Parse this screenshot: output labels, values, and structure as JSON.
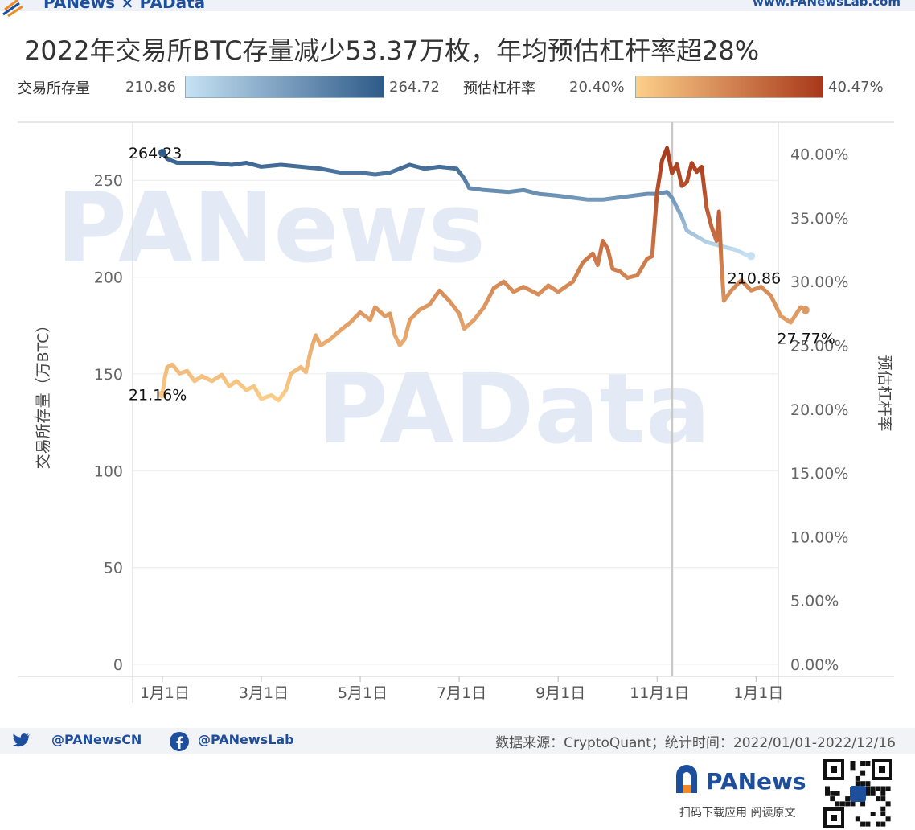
{
  "header": {
    "brand": "PANews × PAData",
    "site": "www.PANewsLab.com"
  },
  "title": "2022年交易所BTC存量减少53.37万枚，年均预估杠杆率超28%",
  "legend": {
    "reserve": {
      "label": "交易所存量",
      "min": "210.86",
      "max": "264.72",
      "color_light": "#c6e2f4",
      "color_dark": "#2e5a89"
    },
    "leverage": {
      "label": "预估杠杆率",
      "min": "20.40%",
      "max": "40.47%",
      "color_light": "#fdd08a",
      "color_dark": "#a8381a"
    }
  },
  "watermarks": [
    "PANews",
    "PAData"
  ],
  "chart_data": {
    "type": "line",
    "x_unit": "month_index_2022",
    "x_ticks": [
      {
        "x": 0,
        "label": "1月1日"
      },
      {
        "x": 2,
        "label": "3月1日"
      },
      {
        "x": 4,
        "label": "5月1日"
      },
      {
        "x": 6,
        "label": "7月1日"
      },
      {
        "x": 8,
        "label": "9月1日"
      },
      {
        "x": 10,
        "label": "11月1日"
      },
      {
        "x": 12,
        "label": "1月1日"
      }
    ],
    "x_range": [
      -0.6,
      12.45
    ],
    "left_axis": {
      "label": "交易所存量（万BTC）",
      "range": [
        0,
        280
      ],
      "ticks": [
        0,
        50,
        100,
        150,
        200,
        250
      ],
      "tick_labels": [
        "0",
        "50",
        "100",
        "150",
        "200",
        "250"
      ]
    },
    "right_axis": {
      "label": "预估杠杆率",
      "range": [
        0,
        42.5
      ],
      "ticks": [
        0,
        5,
        10,
        15,
        20,
        25,
        30,
        35,
        40
      ],
      "tick_labels": [
        "0.00%",
        "5.00%",
        "10.00%",
        "15.00%",
        "20.00%",
        "25.00%",
        "30.00%",
        "35.00%",
        "40.00%"
      ]
    },
    "reference_line_x": 10.3,
    "series": [
      {
        "name": "交易所存量",
        "axis": "left",
        "min": 210.86,
        "max": 264.72,
        "points": [
          [
            0,
            264.23
          ],
          [
            0.1,
            261
          ],
          [
            0.3,
            259
          ],
          [
            0.6,
            259
          ],
          [
            1.0,
            259
          ],
          [
            1.4,
            258
          ],
          [
            1.7,
            259
          ],
          [
            2.0,
            257
          ],
          [
            2.4,
            258
          ],
          [
            2.8,
            257
          ],
          [
            3.2,
            256
          ],
          [
            3.6,
            254
          ],
          [
            4.0,
            254
          ],
          [
            4.3,
            253
          ],
          [
            4.6,
            254
          ],
          [
            5.0,
            258
          ],
          [
            5.3,
            256
          ],
          [
            5.6,
            257
          ],
          [
            5.95,
            256
          ],
          [
            6.1,
            251
          ],
          [
            6.2,
            246
          ],
          [
            6.5,
            245
          ],
          [
            7.0,
            244
          ],
          [
            7.3,
            245
          ],
          [
            7.6,
            243
          ],
          [
            8.0,
            242
          ],
          [
            8.3,
            241
          ],
          [
            8.6,
            240
          ],
          [
            8.9,
            240
          ],
          [
            9.2,
            241
          ],
          [
            9.5,
            242
          ],
          [
            9.8,
            243
          ],
          [
            10.0,
            243
          ],
          [
            10.2,
            244
          ],
          [
            10.3,
            241
          ],
          [
            10.4,
            236
          ],
          [
            10.5,
            231
          ],
          [
            10.6,
            224
          ],
          [
            10.8,
            221
          ],
          [
            11.0,
            218
          ],
          [
            11.3,
            216
          ],
          [
            11.6,
            214
          ],
          [
            11.8,
            211.5
          ],
          [
            11.9,
            210.86
          ]
        ],
        "labels": [
          {
            "text": "264.23",
            "at": "start"
          },
          {
            "text": "210.86",
            "at": "end"
          }
        ]
      },
      {
        "name": "预估杠杆率",
        "axis": "right",
        "min": 20.4,
        "max": 40.47,
        "points": [
          [
            0,
            21.16
          ],
          [
            0.05,
            22.5
          ],
          [
            0.1,
            23.3
          ],
          [
            0.2,
            23.5
          ],
          [
            0.35,
            22.8
          ],
          [
            0.5,
            23.0
          ],
          [
            0.65,
            22.2
          ],
          [
            0.8,
            22.6
          ],
          [
            1.0,
            22.2
          ],
          [
            1.2,
            22.7
          ],
          [
            1.35,
            21.8
          ],
          [
            1.5,
            22.2
          ],
          [
            1.7,
            21.5
          ],
          [
            1.85,
            21.8
          ],
          [
            2.0,
            20.8
          ],
          [
            2.2,
            21.1
          ],
          [
            2.35,
            20.7
          ],
          [
            2.5,
            21.5
          ],
          [
            2.6,
            22.8
          ],
          [
            2.8,
            23.3
          ],
          [
            2.9,
            22.9
          ],
          [
            3.0,
            24.6
          ],
          [
            3.1,
            25.8
          ],
          [
            3.2,
            25.0
          ],
          [
            3.4,
            25.5
          ],
          [
            3.6,
            26.2
          ],
          [
            3.8,
            26.8
          ],
          [
            4.0,
            27.6
          ],
          [
            4.2,
            27.0
          ],
          [
            4.3,
            28.0
          ],
          [
            4.5,
            27.3
          ],
          [
            4.6,
            27.5
          ],
          [
            4.7,
            25.8
          ],
          [
            4.8,
            25.0
          ],
          [
            4.9,
            25.5
          ],
          [
            5.0,
            27.0
          ],
          [
            5.2,
            27.8
          ],
          [
            5.4,
            28.2
          ],
          [
            5.6,
            29.3
          ],
          [
            5.8,
            28.5
          ],
          [
            6.0,
            27.5
          ],
          [
            6.1,
            26.3
          ],
          [
            6.3,
            27.0
          ],
          [
            6.5,
            28.0
          ],
          [
            6.7,
            29.5
          ],
          [
            6.9,
            30.0
          ],
          [
            7.1,
            29.2
          ],
          [
            7.3,
            29.6
          ],
          [
            7.6,
            29.0
          ],
          [
            7.8,
            29.7
          ],
          [
            8.0,
            29.2
          ],
          [
            8.3,
            30.0
          ],
          [
            8.5,
            31.5
          ],
          [
            8.7,
            32.2
          ],
          [
            8.8,
            31.3
          ],
          [
            8.9,
            33.2
          ],
          [
            9.0,
            32.6
          ],
          [
            9.1,
            31.0
          ],
          [
            9.25,
            30.8
          ],
          [
            9.4,
            30.3
          ],
          [
            9.6,
            30.5
          ],
          [
            9.8,
            31.8
          ],
          [
            9.9,
            32.0
          ],
          [
            10.0,
            37.0
          ],
          [
            10.1,
            39.5
          ],
          [
            10.2,
            40.47
          ],
          [
            10.3,
            38.5
          ],
          [
            10.4,
            39.2
          ],
          [
            10.5,
            37.5
          ],
          [
            10.6,
            37.8
          ],
          [
            10.7,
            39.3
          ],
          [
            10.8,
            38.6
          ],
          [
            10.9,
            39.0
          ],
          [
            11.0,
            35.8
          ],
          [
            11.1,
            34.3
          ],
          [
            11.2,
            33.2
          ],
          [
            11.25,
            35.5
          ],
          [
            11.3,
            31.5
          ],
          [
            11.35,
            28.5
          ],
          [
            11.5,
            29.3
          ],
          [
            11.7,
            30.1
          ],
          [
            11.9,
            29.3
          ],
          [
            12.1,
            29.6
          ],
          [
            12.3,
            28.9
          ],
          [
            12.5,
            27.3
          ],
          [
            12.7,
            26.8
          ],
          [
            12.9,
            28.0
          ],
          [
            13.0,
            27.77
          ]
        ],
        "labels": [
          {
            "text": "21.16%",
            "at": "start"
          },
          {
            "text": "27.77%",
            "at": "end"
          }
        ]
      }
    ]
  },
  "footer": {
    "twitter": "@PANewsCN",
    "facebook": "@PANewsLab",
    "source": "数据来源：CryptoQuant；统计时间：2022/01/01-2022/12/16",
    "brand": "PANews",
    "scan": "扫码下载应用 阅读原文"
  },
  "icons": {
    "twitter": "twitter-icon",
    "facebook": "facebook-icon",
    "logo": "panews-logo-icon",
    "qr": "qr-code-icon"
  }
}
